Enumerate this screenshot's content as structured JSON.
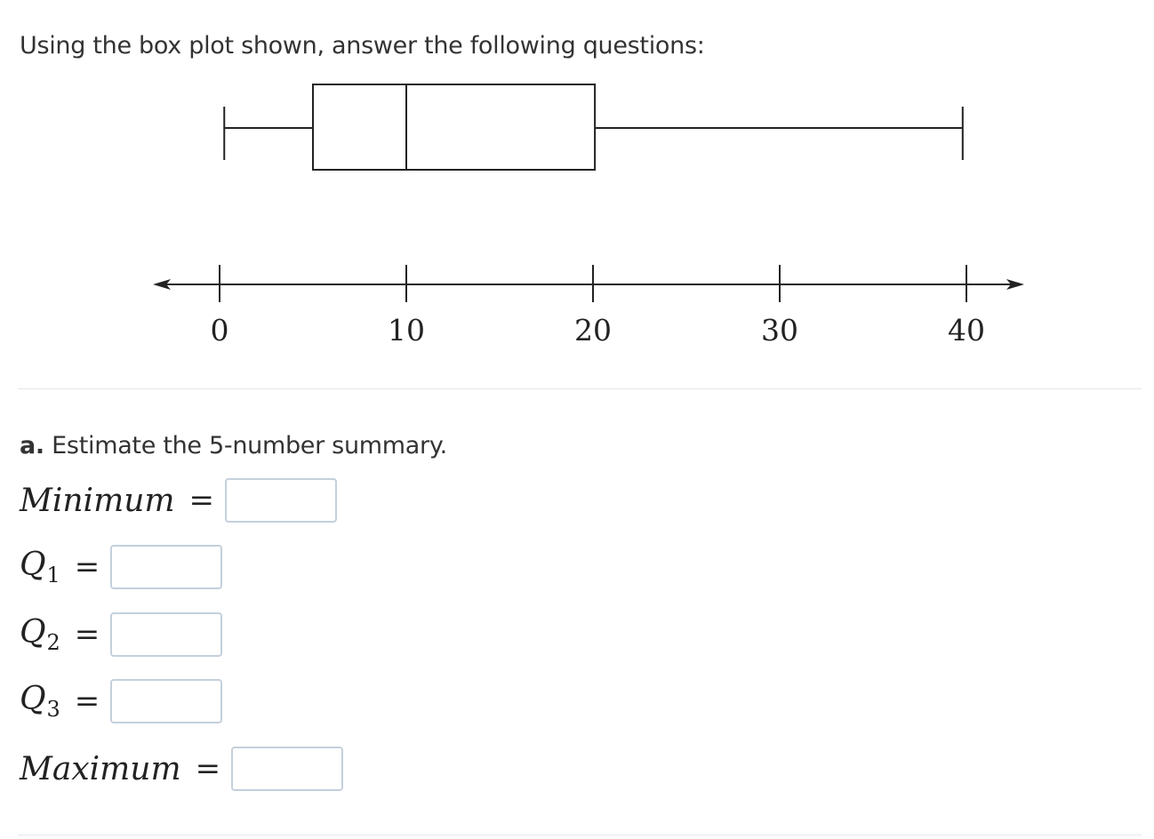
{
  "prompt": "Using the box plot shown, answer the following questions:",
  "chart_data": {
    "type": "boxplot",
    "orientation": "horizontal",
    "whisker_low": 0.25,
    "q1": 5,
    "median": 10,
    "q3": 20.1,
    "whisker_high": 39.8,
    "axis": {
      "min": 0,
      "max": 40,
      "ticks": [
        0,
        10,
        20,
        30,
        40
      ],
      "tick_labels": [
        "0",
        "10",
        "20",
        "30",
        "40"
      ],
      "arrows_both_ends": true
    },
    "title": "",
    "xlabel": "",
    "ylabel": "",
    "grid": false
  },
  "part_a": {
    "letter": "a.",
    "text": " Estimate the 5-number summary.",
    "fields": {
      "minimum": {
        "label": "Minimum",
        "value": ""
      },
      "q1": {
        "label": "Q",
        "sub": "1",
        "value": ""
      },
      "q2": {
        "label": "Q",
        "sub": "2",
        "value": ""
      },
      "q3": {
        "label": "Q",
        "sub": "3",
        "value": ""
      },
      "maximum": {
        "label": "Maximum",
        "value": ""
      }
    },
    "equals": "="
  },
  "colors": {
    "text": "#333333",
    "plot_stroke": "#222222",
    "input_border": "#c4d0dc",
    "divider": "#e6e6e6"
  }
}
